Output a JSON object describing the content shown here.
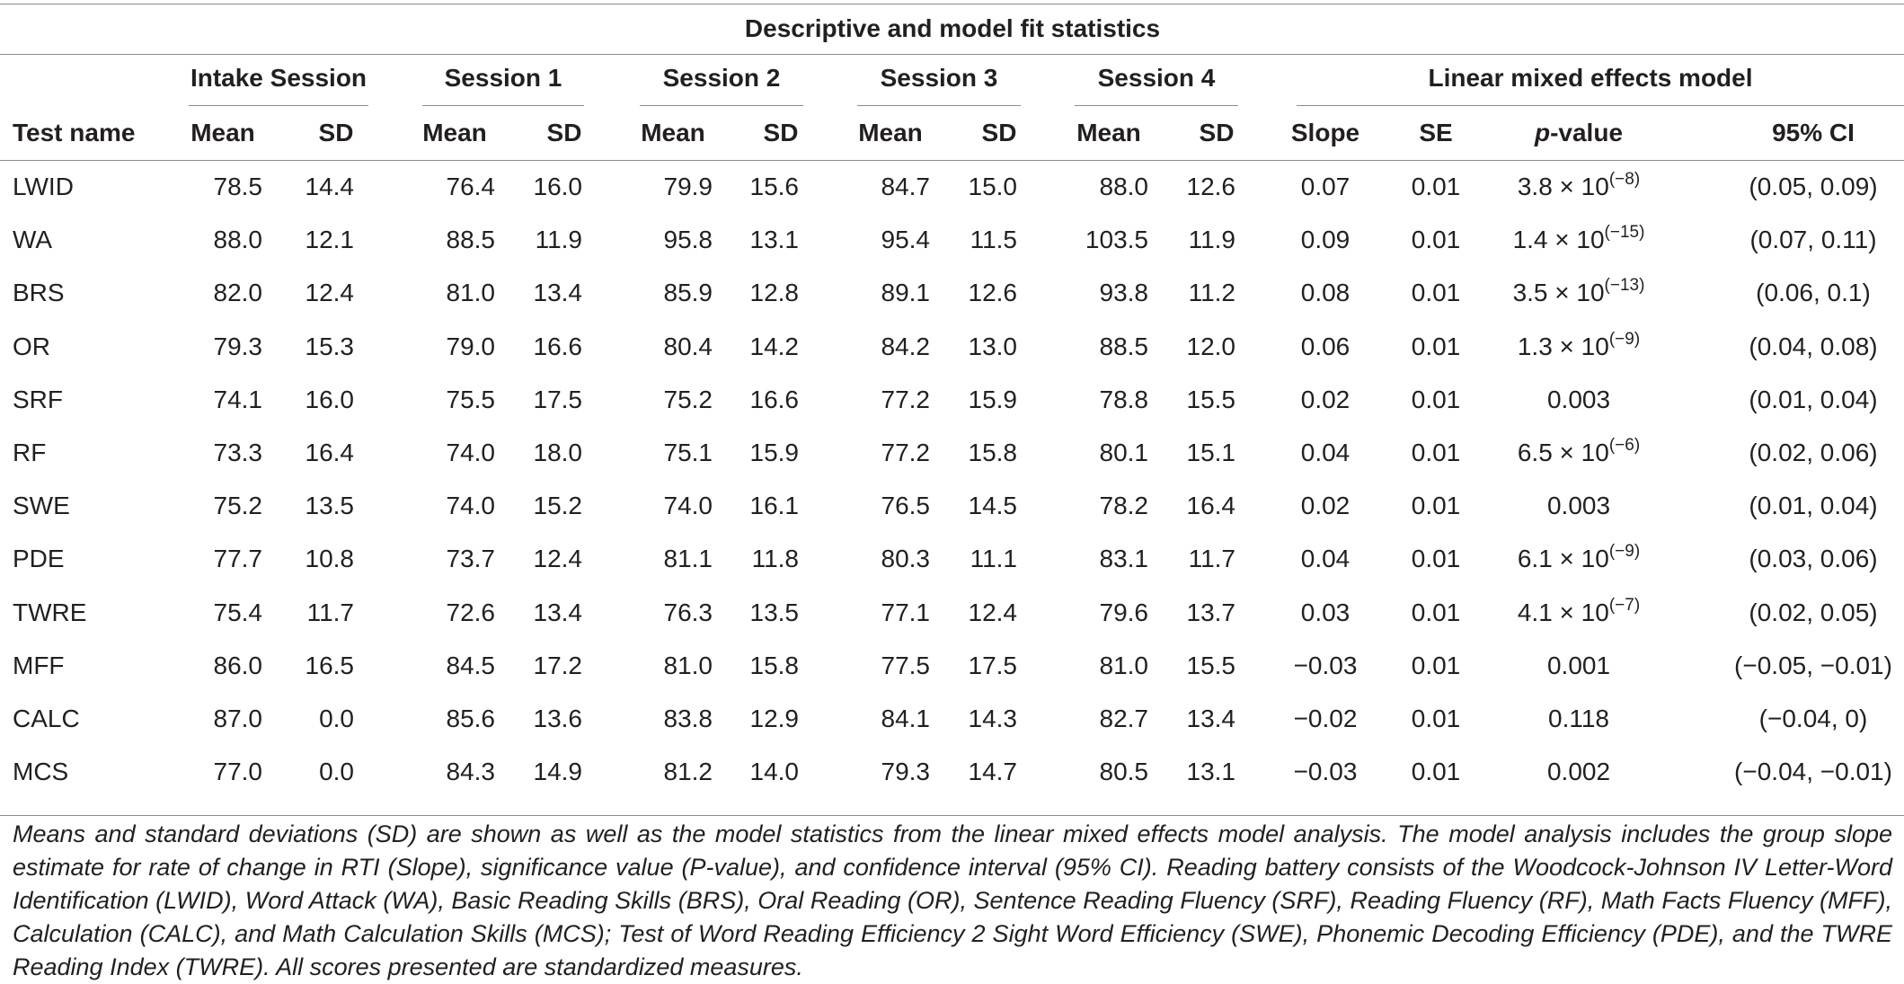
{
  "table": {
    "top_header": "Descriptive and model fit statistics",
    "group_headers": [
      "Intake Session",
      "Session 1",
      "Session 2",
      "Session 3",
      "Session 4",
      "Linear mixed effects model"
    ],
    "col_headers": [
      "Test name",
      "Mean",
      "SD",
      "Mean",
      "SD",
      "Mean",
      "SD",
      "Mean",
      "SD",
      "Mean",
      "SD",
      "Slope",
      "SE",
      "p",
      "-value",
      "95% CI"
    ],
    "rows": [
      {
        "test": "LWID",
        "v": [
          "78.5",
          "14.4",
          "76.4",
          "16.0",
          "79.9",
          "15.6",
          "84.7",
          "15.0",
          "88.0",
          "12.6"
        ],
        "slope": "0.07",
        "se": "0.01",
        "p_base": "3.8 × 10",
        "p_exp": "(−8)",
        "ci": "(0.05, 0.09)"
      },
      {
        "test": "WA",
        "v": [
          "88.0",
          "12.1",
          "88.5",
          "11.9",
          "95.8",
          "13.1",
          "95.4",
          "11.5",
          "103.5",
          "11.9"
        ],
        "slope": "0.09",
        "se": "0.01",
        "p_base": "1.4 × 10",
        "p_exp": "(−15)",
        "ci": "(0.07, 0.11)"
      },
      {
        "test": "BRS",
        "v": [
          "82.0",
          "12.4",
          "81.0",
          "13.4",
          "85.9",
          "12.8",
          "89.1",
          "12.6",
          "93.8",
          "11.2"
        ],
        "slope": "0.08",
        "se": "0.01",
        "p_base": "3.5 × 10",
        "p_exp": "(−13)",
        "ci": "(0.06, 0.1)"
      },
      {
        "test": "OR",
        "v": [
          "79.3",
          "15.3",
          "79.0",
          "16.6",
          "80.4",
          "14.2",
          "84.2",
          "13.0",
          "88.5",
          "12.0"
        ],
        "slope": "0.06",
        "se": "0.01",
        "p_base": "1.3 × 10",
        "p_exp": "(−9)",
        "ci": "(0.04, 0.08)"
      },
      {
        "test": "SRF",
        "v": [
          "74.1",
          "16.0",
          "75.5",
          "17.5",
          "75.2",
          "16.6",
          "77.2",
          "15.9",
          "78.8",
          "15.5"
        ],
        "slope": "0.02",
        "se": "0.01",
        "p_base": "0.003",
        "p_exp": "",
        "ci": "(0.01, 0.04)"
      },
      {
        "test": "RF",
        "v": [
          "73.3",
          "16.4",
          "74.0",
          "18.0",
          "75.1",
          "15.9",
          "77.2",
          "15.8",
          "80.1",
          "15.1"
        ],
        "slope": "0.04",
        "se": "0.01",
        "p_base": "6.5 × 10",
        "p_exp": "(−6)",
        "ci": "(0.02, 0.06)"
      },
      {
        "test": "SWE",
        "v": [
          "75.2",
          "13.5",
          "74.0",
          "15.2",
          "74.0",
          "16.1",
          "76.5",
          "14.5",
          "78.2",
          "16.4"
        ],
        "slope": "0.02",
        "se": "0.01",
        "p_base": "0.003",
        "p_exp": "",
        "ci": "(0.01, 0.04)"
      },
      {
        "test": "PDE",
        "v": [
          "77.7",
          "10.8",
          "73.7",
          "12.4",
          "81.1",
          "11.8",
          "80.3",
          "11.1",
          "83.1",
          "11.7"
        ],
        "slope": "0.04",
        "se": "0.01",
        "p_base": "6.1 × 10",
        "p_exp": "(−9)",
        "ci": "(0.03, 0.06)"
      },
      {
        "test": "TWRE",
        "v": [
          "75.4",
          "11.7",
          "72.6",
          "13.4",
          "76.3",
          "13.5",
          "77.1",
          "12.4",
          "79.6",
          "13.7"
        ],
        "slope": "0.03",
        "se": "0.01",
        "p_base": "4.1 × 10",
        "p_exp": "(−7)",
        "ci": "(0.02, 0.05)"
      },
      {
        "test": "MFF",
        "v": [
          "86.0",
          "16.5",
          "84.5",
          "17.2",
          "81.0",
          "15.8",
          "77.5",
          "17.5",
          "81.0",
          "15.5"
        ],
        "slope": "−0.03",
        "se": "0.01",
        "p_base": "0.001",
        "p_exp": "",
        "ci": "(−0.05, −0.01)"
      },
      {
        "test": "CALC",
        "v": [
          "87.0",
          "0.0",
          "85.6",
          "13.6",
          "83.8",
          "12.9",
          "84.1",
          "14.3",
          "82.7",
          "13.4"
        ],
        "slope": "−0.02",
        "se": "0.01",
        "p_base": "0.118",
        "p_exp": "",
        "ci": "(−0.04, 0)"
      },
      {
        "test": "MCS",
        "v": [
          "77.0",
          "0.0",
          "84.3",
          "14.9",
          "81.2",
          "14.0",
          "79.3",
          "14.7",
          "80.5",
          "13.1"
        ],
        "slope": "−0.03",
        "se": "0.01",
        "p_base": "0.002",
        "p_exp": "",
        "ci": "(−0.04, −0.01)"
      }
    ]
  },
  "caption": "Means and standard deviations (SD) are shown as well as the model statistics from the linear mixed effects model analysis. The model analysis includes the group slope estimate for rate of change in RTI (Slope), significance value (P-value), and confidence interval (95% CI). Reading battery consists of the Woodcock-Johnson IV Letter-Word Identification (LWID), Word Attack (WA), Basic Reading Skills (BRS), Oral Reading (OR), Sentence Reading Fluency (SRF), Reading Fluency (RF), Math Facts Fluency (MFF), Calculation (CALC), and Math Calculation Skills (MCS); Test of Word Reading Efficiency 2 Sight Word Efficiency (SWE), Phonemic Decoding Efficiency (PDE), and the TWRE Reading Index (TWRE). All scores presented are standardized measures."
}
